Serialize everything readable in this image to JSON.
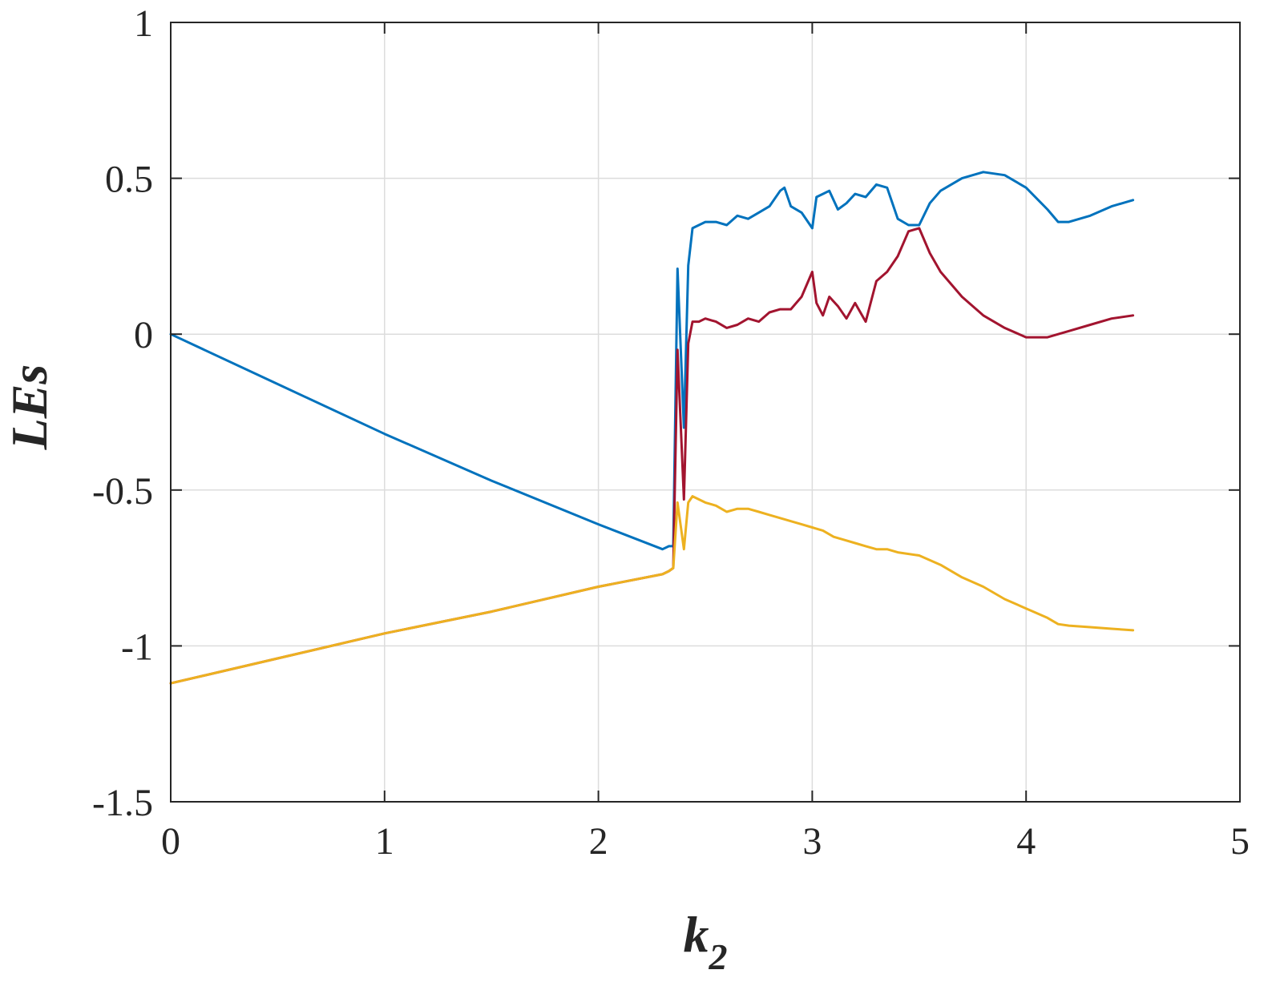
{
  "chart_data": {
    "type": "line",
    "xlabel": "k",
    "xlabel_subscript": "2",
    "ylabel": "LEs",
    "xlim": [
      0,
      5
    ],
    "ylim": [
      -1.5,
      1
    ],
    "grid": true,
    "x_ticks": [
      "0",
      "1",
      "2",
      "3",
      "4",
      "5"
    ],
    "y_ticks": [
      "-1.5",
      "-1",
      "-0.5",
      "0",
      "0.5",
      "1"
    ],
    "series": [
      {
        "color": "#0072BD",
        "x": [
          0,
          0.5,
          1.0,
          1.5,
          2.0,
          2.3,
          2.33,
          2.35,
          2.37,
          2.4,
          2.42,
          2.44,
          2.47,
          2.5,
          2.55,
          2.6,
          2.65,
          2.7,
          2.75,
          2.8,
          2.85,
          2.87,
          2.9,
          2.95,
          3.0,
          3.02,
          3.05,
          3.08,
          3.12,
          3.16,
          3.2,
          3.25,
          3.3,
          3.35,
          3.4,
          3.45,
          3.5,
          3.55,
          3.6,
          3.7,
          3.8,
          3.9,
          4.0,
          4.1,
          4.15,
          4.2,
          4.3,
          4.4,
          4.5
        ],
        "y": [
          0,
          -0.16,
          -0.32,
          -0.47,
          -0.61,
          -0.69,
          -0.68,
          -0.68,
          0.21,
          -0.3,
          0.22,
          0.34,
          0.35,
          0.36,
          0.36,
          0.35,
          0.38,
          0.37,
          0.39,
          0.41,
          0.46,
          0.47,
          0.41,
          0.39,
          0.34,
          0.44,
          0.45,
          0.46,
          0.4,
          0.42,
          0.45,
          0.44,
          0.48,
          0.47,
          0.37,
          0.35,
          0.35,
          0.42,
          0.46,
          0.5,
          0.52,
          0.51,
          0.47,
          0.4,
          0.36,
          0.36,
          0.38,
          0.41,
          0.43
        ]
      },
      {
        "color": "#A2142F",
        "x": [
          0,
          0.5,
          1.0,
          1.5,
          2.0,
          2.3,
          2.33,
          2.35,
          2.37,
          2.4,
          2.42,
          2.44,
          2.47,
          2.5,
          2.55,
          2.6,
          2.65,
          2.7,
          2.75,
          2.8,
          2.85,
          2.9,
          2.95,
          3.0,
          3.02,
          3.05,
          3.08,
          3.12,
          3.16,
          3.2,
          3.25,
          3.3,
          3.35,
          3.4,
          3.45,
          3.5,
          3.55,
          3.6,
          3.7,
          3.8,
          3.9,
          4.0,
          4.1,
          4.15,
          4.2,
          4.3,
          4.4,
          4.5
        ],
        "y": [
          -1.12,
          -1.04,
          -0.96,
          -0.89,
          -0.81,
          -0.77,
          -0.76,
          -0.75,
          -0.05,
          -0.53,
          -0.03,
          0.04,
          0.04,
          0.05,
          0.04,
          0.02,
          0.03,
          0.05,
          0.04,
          0.07,
          0.08,
          0.08,
          0.12,
          0.2,
          0.1,
          0.06,
          0.12,
          0.09,
          0.05,
          0.1,
          0.04,
          0.17,
          0.2,
          0.25,
          0.33,
          0.34,
          0.26,
          0.2,
          0.12,
          0.06,
          0.02,
          -0.01,
          -0.01,
          0.0,
          0.01,
          0.03,
          0.05,
          0.06
        ]
      },
      {
        "color": "#EDB120",
        "x": [
          0,
          0.5,
          1.0,
          1.5,
          2.0,
          2.3,
          2.33,
          2.35,
          2.37,
          2.4,
          2.42,
          2.44,
          2.47,
          2.5,
          2.55,
          2.6,
          2.65,
          2.7,
          2.75,
          2.8,
          2.85,
          2.9,
          2.95,
          3.0,
          3.05,
          3.1,
          3.15,
          3.2,
          3.25,
          3.3,
          3.35,
          3.4,
          3.5,
          3.6,
          3.7,
          3.8,
          3.9,
          4.0,
          4.1,
          4.15,
          4.2,
          4.3,
          4.4,
          4.5
        ],
        "y": [
          -1.12,
          -1.04,
          -0.96,
          -0.89,
          -0.81,
          -0.77,
          -0.76,
          -0.75,
          -0.54,
          -0.69,
          -0.54,
          -0.52,
          -0.53,
          -0.54,
          -0.55,
          -0.57,
          -0.56,
          -0.56,
          -0.57,
          -0.58,
          -0.59,
          -0.6,
          -0.61,
          -0.62,
          -0.63,
          -0.65,
          -0.66,
          -0.67,
          -0.68,
          -0.69,
          -0.69,
          -0.7,
          -0.71,
          -0.74,
          -0.78,
          -0.81,
          -0.85,
          -0.88,
          -0.91,
          -0.93,
          -0.935,
          -0.94,
          -0.945,
          -0.95
        ]
      }
    ]
  }
}
